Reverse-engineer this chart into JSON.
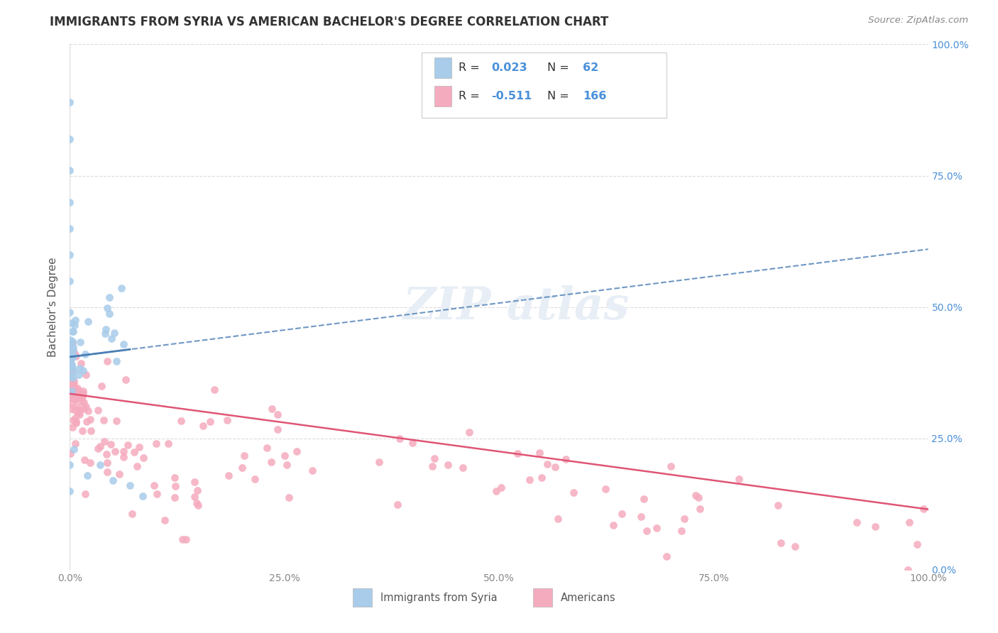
{
  "title": "IMMIGRANTS FROM SYRIA VS AMERICAN BACHELOR'S DEGREE CORRELATION CHART",
  "source": "Source: ZipAtlas.com",
  "ylabel": "Bachelor's Degree",
  "xlim": [
    0,
    1.0
  ],
  "ylim": [
    0,
    1.0
  ],
  "xtick_vals": [
    0.0,
    0.25,
    0.5,
    0.75,
    1.0
  ],
  "xtick_labels": [
    "0.0%",
    "25.0%",
    "50.0%",
    "75.0%",
    "100.0%"
  ],
  "ytick_vals": [
    0.0,
    0.25,
    0.5,
    0.75,
    1.0
  ],
  "ytick_labels_right": [
    "0.0%",
    "25.0%",
    "50.0%",
    "75.0%",
    "100.0%"
  ],
  "legend_r1": "0.023",
  "legend_n1": "62",
  "legend_r2": "-0.511",
  "legend_n2": "166",
  "blue_color": "#A8CCEA",
  "pink_color": "#F5ABBE",
  "blue_line_color": "#4A7FB5",
  "pink_line_color": "#E05575",
  "background_color": "#FFFFFF",
  "grid_color": "#CCCCCC",
  "watermark_color": "#E8EEF5",
  "title_color": "#333333",
  "source_color": "#888888",
  "ylabel_color": "#555555",
  "tick_color": "#888888",
  "right_tick_color": "#4A90D9",
  "legend_text_color": "#333333",
  "legend_value_color": "#4A90D9",
  "bottom_legend_color": "#555555"
}
